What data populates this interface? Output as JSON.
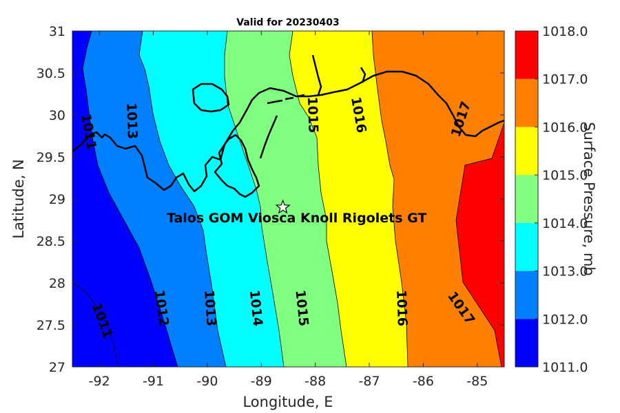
{
  "title": "Valid for 20230403",
  "xlabel": "Longitude, E",
  "ylabel": "Latitude, N",
  "xticks": [
    "-92",
    "-91",
    "-90",
    "-89",
    "-88",
    "-87",
    "-86",
    "-85"
  ],
  "xtick_values": [
    -92,
    -91,
    -90,
    -89,
    -88,
    -87,
    -86,
    -85
  ],
  "yticks": [
    "31",
    "30.5",
    "30",
    "29.5",
    "29",
    "28.5",
    "28",
    "27.5",
    "27"
  ],
  "ytick_values": [
    31,
    30.5,
    30,
    29.5,
    29,
    28.5,
    28,
    27.5,
    27
  ],
  "xlim": [
    -92.5,
    -84.5
  ],
  "ylim": [
    27,
    31
  ],
  "colorbar": {
    "label": "Surface Pressure, mb",
    "ticks": [
      "1018.0",
      "1017.0",
      "1016.0",
      "1015.0",
      "1014.0",
      "1013.0",
      "1012.0",
      "1011.0"
    ],
    "levels": [
      1011,
      1012,
      1013,
      1014,
      1015,
      1016,
      1017,
      1018
    ],
    "colors": [
      "#0000ff",
      "#0080ff",
      "#00ffff",
      "#80ff80",
      "#ffff00",
      "#ff8000",
      "#ff0000"
    ]
  },
  "contour_labels": [
    {
      "text": "1011",
      "lon": -92.2,
      "lat": 29.8,
      "angle": 80
    },
    {
      "text": "1013",
      "lon": -91.4,
      "lat": 29.93,
      "angle": 88
    },
    {
      "text": "1015",
      "lon": -88.05,
      "lat": 30.0,
      "angle": 88
    },
    {
      "text": "1016",
      "lon": -87.2,
      "lat": 30.0,
      "angle": 80
    },
    {
      "text": "1017",
      "lon": -85.3,
      "lat": 29.95,
      "angle": -72
    },
    {
      "text": "1011",
      "lon": -91.95,
      "lat": 27.55,
      "angle": 70
    },
    {
      "text": "1012",
      "lon": -90.85,
      "lat": 27.7,
      "angle": 82
    },
    {
      "text": "1013",
      "lon": -89.95,
      "lat": 27.7,
      "angle": 86
    },
    {
      "text": "1014",
      "lon": -89.1,
      "lat": 27.7,
      "angle": 84
    },
    {
      "text": "1015",
      "lon": -88.25,
      "lat": 27.7,
      "angle": 84
    },
    {
      "text": "1016",
      "lon": -86.4,
      "lat": 27.7,
      "angle": 88
    },
    {
      "text": "1017",
      "lon": -85.3,
      "lat": 27.7,
      "angle": 55
    }
  ],
  "site": {
    "name": "Talos GOM Viosca Knoll Rigolets GT",
    "lon": -88.6,
    "lat": 28.9,
    "marker": "star"
  }
}
